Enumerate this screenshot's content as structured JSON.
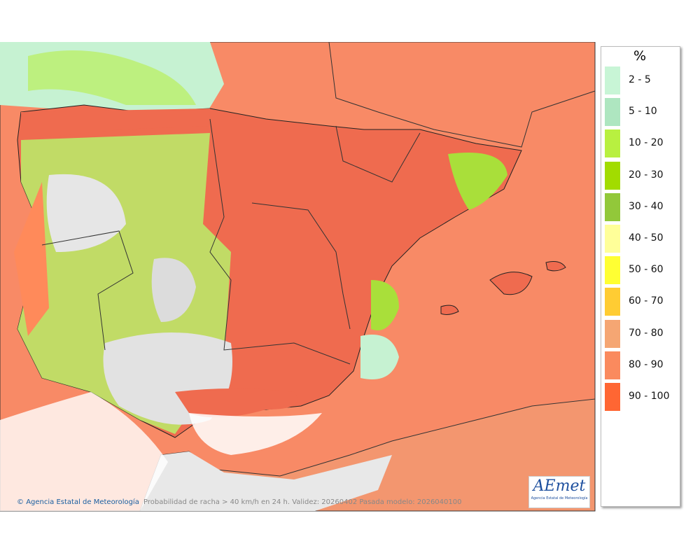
{
  "legend": {
    "title": "%",
    "items": [
      {
        "label": "2 - 5",
        "color": "#c8f5d6"
      },
      {
        "label": "5 - 10",
        "color": "#aee6c0"
      },
      {
        "label": "10 - 20",
        "color": "#b8f040"
      },
      {
        "label": "20 - 30",
        "color": "#a2dc00"
      },
      {
        "label": "30 - 40",
        "color": "#92c83a"
      },
      {
        "label": "40 - 50",
        "color": "#ffff99"
      },
      {
        "label": "50 - 60",
        "color": "#ffff33"
      },
      {
        "label": "60 - 70",
        "color": "#ffcc33"
      },
      {
        "label": "70 - 80",
        "color": "#f5a673"
      },
      {
        "label": "80 - 90",
        "color": "#fa8a5e"
      },
      {
        "label": "90 - 100",
        "color": "#ff6633"
      }
    ]
  },
  "footer": {
    "credit": "Agencia Estatal de Meteorología",
    "caption": "Probabilidad de racha > 40 km/h en 24 h. Validez: 20260402 Pasada modelo: 2026040100"
  },
  "logo": {
    "name": "AEmet",
    "subtitle": "Agencia Estatal de Meteorología"
  }
}
